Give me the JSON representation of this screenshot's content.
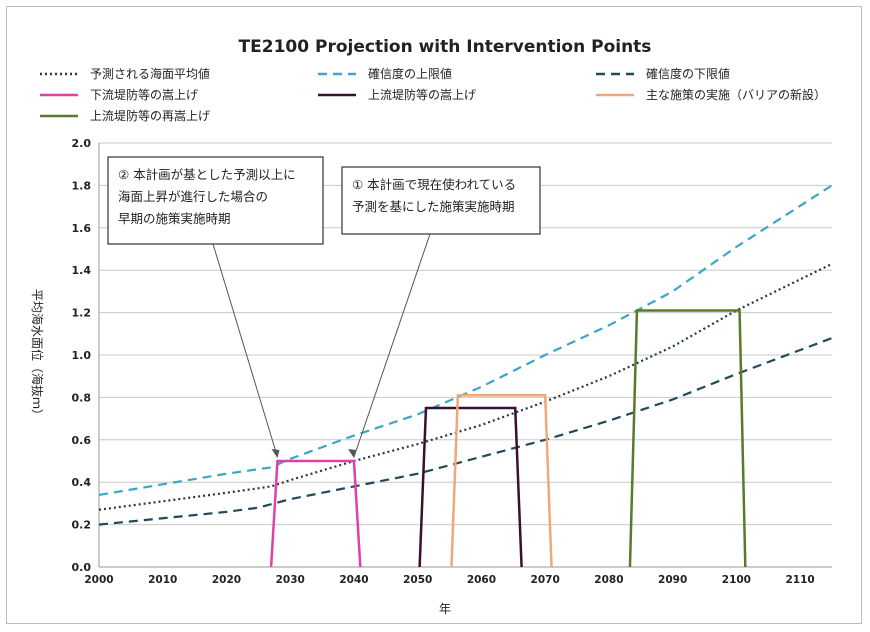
{
  "chart_data": {
    "type": "line",
    "title": "TE2100 Projection with Intervention Points",
    "xlabel": "年",
    "ylabel": "平均海水面位（海抜ｍ）",
    "xlim": [
      2000,
      2115
    ],
    "ylim": [
      0,
      2.0
    ],
    "xticks": [
      2000,
      2010,
      2020,
      2030,
      2040,
      2050,
      2060,
      2070,
      2080,
      2090,
      2100,
      2110
    ],
    "yticks": [
      "0.0",
      "0.2",
      "0.4",
      "0.6",
      "0.8",
      "1.0",
      "1.2",
      "1.4",
      "1.6",
      "1.8",
      "2.0"
    ],
    "grid": "horizontal",
    "legend_placement": "top",
    "series": [
      {
        "name": "予測される海面平均値",
        "style": "dotted",
        "color": "#1f3a4d",
        "x": [
          2000,
          2010,
          2020,
          2027,
          2030,
          2040,
          2050,
          2060,
          2070,
          2080,
          2090,
          2100,
          2115
        ],
        "y": [
          0.27,
          0.31,
          0.35,
          0.38,
          0.41,
          0.5,
          0.58,
          0.67,
          0.78,
          0.9,
          1.04,
          1.21,
          1.43
        ]
      },
      {
        "name": "確信度の上限値",
        "style": "dashed",
        "color": "#3aa6c9",
        "x": [
          2000,
          2010,
          2020,
          2027,
          2030,
          2040,
          2050,
          2060,
          2070,
          2080,
          2090,
          2100,
          2115
        ],
        "y": [
          0.34,
          0.39,
          0.44,
          0.47,
          0.51,
          0.62,
          0.72,
          0.85,
          1.0,
          1.14,
          1.3,
          1.51,
          1.8
        ]
      },
      {
        "name": "確信度の下限値",
        "style": "dashed",
        "color": "#1f4b5a",
        "x": [
          2000,
          2010,
          2020,
          2025,
          2030,
          2040,
          2050,
          2060,
          2070,
          2080,
          2090,
          2100,
          2115
        ],
        "y": [
          0.2,
          0.23,
          0.26,
          0.28,
          0.32,
          0.38,
          0.44,
          0.52,
          0.6,
          0.69,
          0.79,
          0.91,
          1.08
        ]
      },
      {
        "name": "下流堤防等の嵩上げ",
        "style": "solid",
        "color": "#e040a8",
        "x": [
          2027,
          2028,
          2040,
          2041
        ],
        "y": [
          0,
          0.5,
          0.5,
          0
        ]
      },
      {
        "name": "上流堤防等の嵩上げ",
        "style": "solid",
        "color": "#3a1030",
        "x": [
          2050.3,
          2051.3,
          2065.3,
          2066.3
        ],
        "y": [
          0,
          0.75,
          0.75,
          0
        ]
      },
      {
        "name": "主な施策の実施（バリアの新設）",
        "style": "solid",
        "color": "#f0a878",
        "x": [
          2055.3,
          2056.3,
          2070,
          2071
        ],
        "y": [
          0,
          0.81,
          0.81,
          0
        ]
      },
      {
        "name": "上流堤防等の再嵩上げ",
        "style": "solid",
        "color": "#5a7a2a",
        "x": [
          2083.3,
          2084.4,
          2100.5,
          2101.4
        ],
        "y": [
          0,
          1.21,
          1.21,
          0
        ]
      }
    ],
    "annotations": [
      {
        "lines": [
          "② 本計画が基とした予測以上に",
          "海面上昇が進行した場合の",
          "早期の施策実施時期"
        ],
        "target": {
          "x": 2028,
          "y": 0.5
        }
      },
      {
        "lines": [
          "① 本計画で現在使われている",
          "予測を基にした施策実施時期"
        ],
        "target": {
          "x": 2040,
          "y": 0.5
        }
      }
    ]
  }
}
